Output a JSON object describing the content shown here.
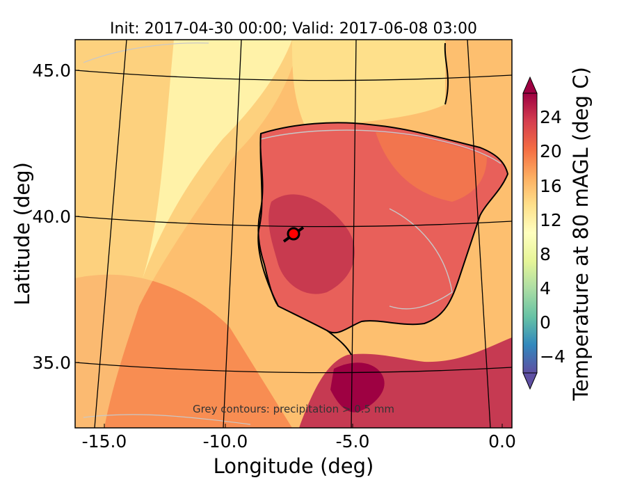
{
  "chart_data": {
    "type": "heatmap",
    "title": "Init: 2017-04-30 00:00; Valid: 2017-06-08 03:00",
    "xlabel": "Longitude (deg)",
    "ylabel": "Latitude (deg)",
    "xlim": [
      -15.8,
      0.0
    ],
    "ylim": [
      32.8,
      46.1
    ],
    "x_ticks": [
      "-15.0",
      "-10.0",
      "-5.0",
      "0.0"
    ],
    "y_ticks": [
      "45.0",
      "40.0",
      "35.0"
    ],
    "colorbar": {
      "label": "Temperature at 80 mAGL (deg C)",
      "range": [
        -6,
        28
      ],
      "ticks": [
        "−4",
        "0",
        "4",
        "8",
        "12",
        "16",
        "20",
        "24"
      ],
      "colors": [
        "#5e4fa2",
        "#3288bd",
        "#66c2a5",
        "#abdda4",
        "#e6f598",
        "#ffffbf",
        "#fee08b",
        "#fdae61",
        "#f46d43",
        "#d53e4f",
        "#9e0142"
      ]
    },
    "marker": {
      "lon": -7.6,
      "lat": 39.4,
      "color": "#ff0000"
    },
    "annotation": "Grey contours: precipitation > 0.5 mm",
    "grid": true,
    "colors": {
      "land_hot": "#d53e4f",
      "sea_warm": "#fdae61",
      "sea_cool": "#fee08b",
      "precip_contour": "#c8c8c8"
    }
  }
}
